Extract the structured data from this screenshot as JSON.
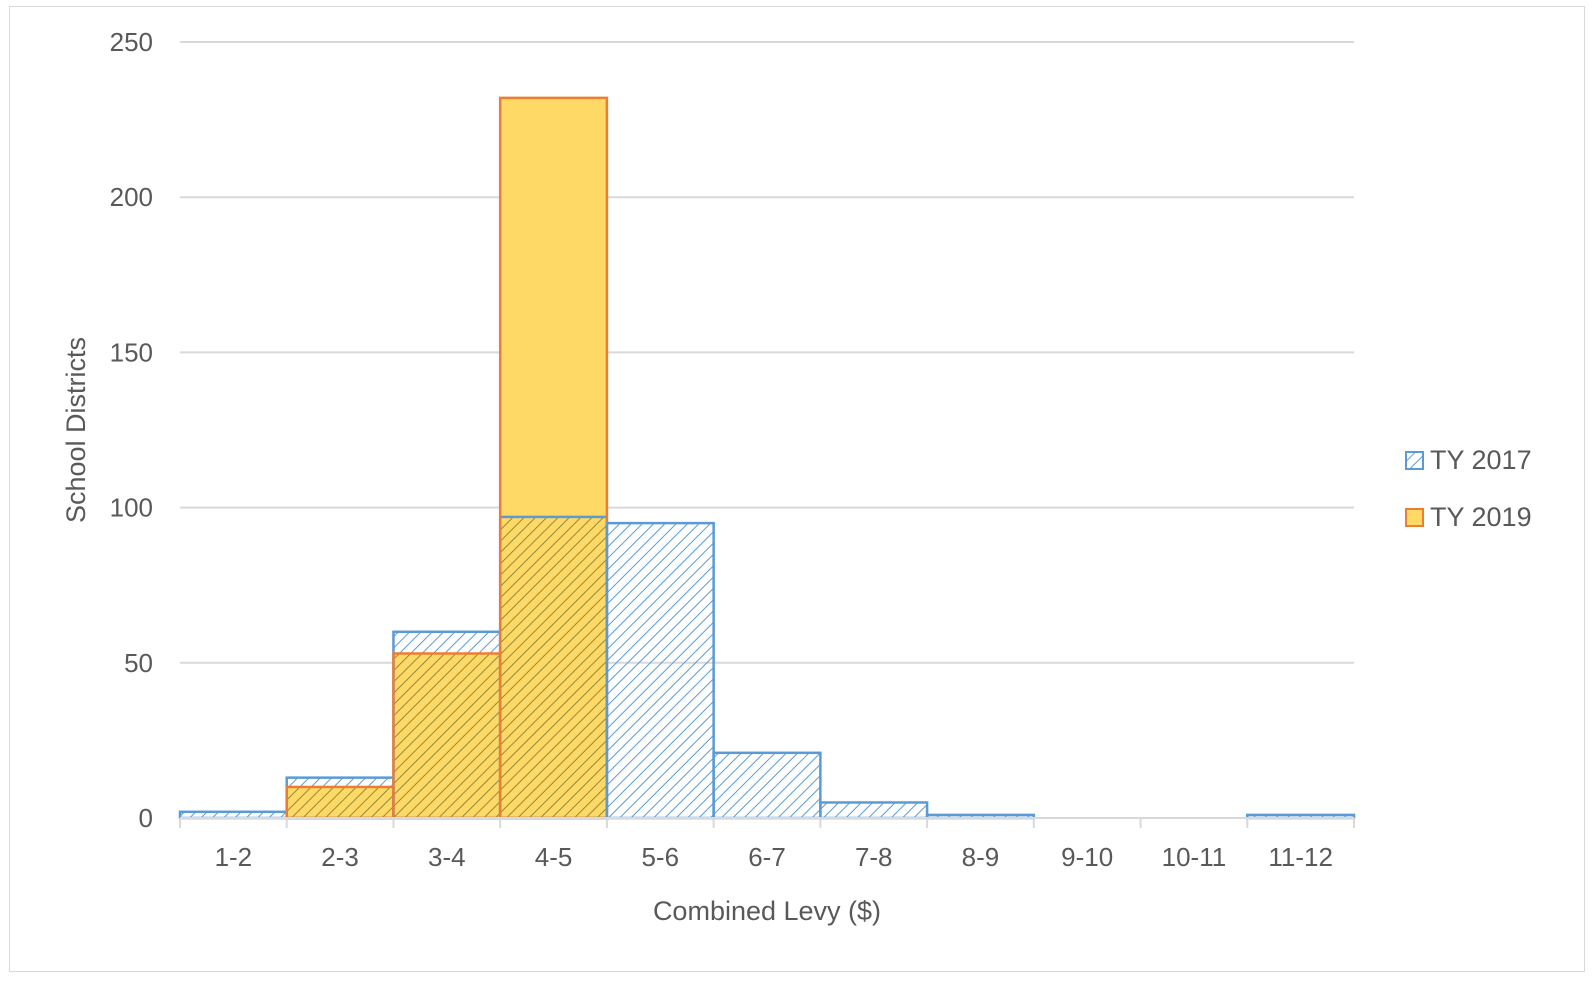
{
  "chart_data": {
    "type": "bar",
    "xlabel": "Combined Levy ($)",
    "ylabel": "School Districts",
    "categories": [
      "1-2",
      "2-3",
      "3-4",
      "4-5",
      "5-6",
      "6-7",
      "7-8",
      "8-9",
      "9-10",
      "10-11",
      "11-12"
    ],
    "ylim": [
      0,
      250
    ],
    "yticks": [
      "0",
      "50",
      "100",
      "150",
      "200",
      "250"
    ],
    "grid": true,
    "legend_position": "right",
    "series": [
      {
        "name": "TY 2017",
        "values": [
          2,
          13,
          60,
          97,
          95,
          21,
          5,
          1,
          0,
          0,
          1
        ],
        "color": "#5b9bd5",
        "fill": "hatched"
      },
      {
        "name": "TY 2019",
        "values": [
          0,
          10,
          53,
          232,
          0,
          0,
          0,
          0,
          0,
          0,
          0
        ],
        "color": "#ed7d31",
        "fill": "#ffd966"
      }
    ]
  }
}
